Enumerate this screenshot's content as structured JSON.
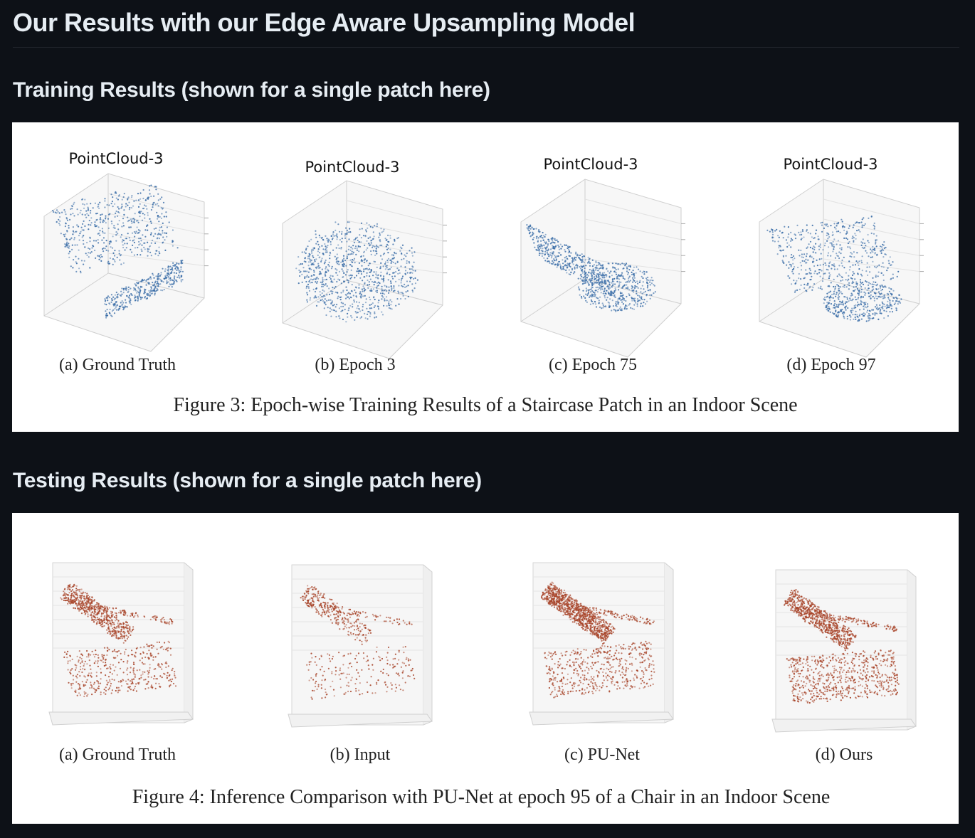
{
  "page": {
    "title": "Our Results with our Edge Aware Upsampling Model"
  },
  "training": {
    "heading": "Training Results (shown for a single patch here)",
    "figure": {
      "panels": [
        {
          "plot_title": "PointCloud-3",
          "caption": "(a) Ground Truth"
        },
        {
          "plot_title": "PointCloud-3",
          "caption": "(b) Epoch 3"
        },
        {
          "plot_title": "PointCloud-3",
          "caption": "(c) Epoch 75"
        },
        {
          "plot_title": "PointCloud-3",
          "caption": "(d) Epoch 97"
        }
      ],
      "caption": "Figure 3: Epoch-wise Training Results of a Staircase Patch in an Indoor Scene",
      "point_color": "#3b6ea8"
    }
  },
  "testing": {
    "heading": "Testing Results (shown for a single patch here)",
    "figure": {
      "panels": [
        {
          "caption": "(a) Ground Truth"
        },
        {
          "caption": "(b) Input"
        },
        {
          "caption": "(c) PU-Net"
        },
        {
          "caption": "(d) Ours"
        }
      ],
      "caption": "Figure 4: Inference Comparison with PU-Net at epoch 95 of a Chair in an Indoor Scene",
      "point_color": "#a8452a"
    }
  },
  "colors": {
    "background": "#0d1117",
    "text": "#e6edf3",
    "figure_bg": "#ffffff"
  }
}
